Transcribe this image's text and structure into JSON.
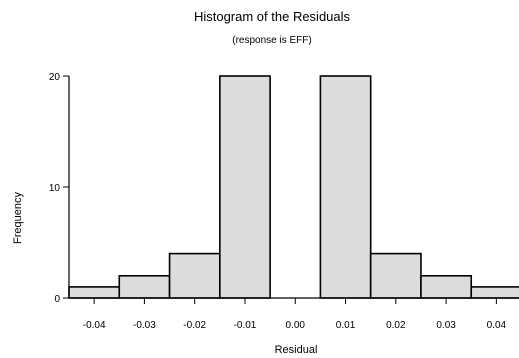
{
  "chart_data": {
    "type": "bar",
    "title": "Histogram of the Residuals",
    "subtitle": "(response is EFF)",
    "xlabel": "Residual",
    "ylabel": "Frequency",
    "bin_width": 0.01,
    "bins": [
      {
        "center": -0.04,
        "count": 1
      },
      {
        "center": -0.03,
        "count": 2
      },
      {
        "center": -0.02,
        "count": 4
      },
      {
        "center": -0.01,
        "count": 20
      },
      {
        "center": 0.0,
        "count": 0
      },
      {
        "center": 0.01,
        "count": 20
      },
      {
        "center": 0.02,
        "count": 4
      },
      {
        "center": 0.03,
        "count": 2
      },
      {
        "center": 0.04,
        "count": 1
      }
    ],
    "xticks": [
      -0.04,
      -0.03,
      -0.02,
      -0.01,
      0.0,
      0.01,
      0.02,
      0.03,
      0.04
    ],
    "xtick_labels": [
      "-0.04",
      "-0.03",
      "-0.02",
      "-0.01",
      "0.00",
      "0.01",
      "0.02",
      "0.03",
      "0.04"
    ],
    "yticks": [
      0,
      10,
      20
    ],
    "ytick_labels": [
      "0",
      "10",
      "20"
    ],
    "xlim": [
      -0.045,
      0.0445
    ],
    "ylim": [
      0,
      20
    ],
    "grid": false,
    "colors": {
      "bar_fill": "#dcdcdc",
      "bar_edge": "#000000"
    }
  }
}
